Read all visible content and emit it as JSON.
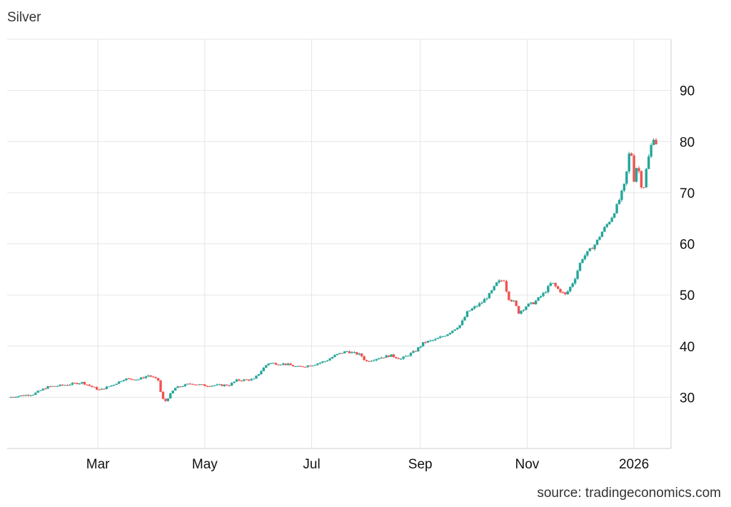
{
  "chart_data": {
    "type": "candlestick",
    "title": "Silver",
    "source": "source: tradingeconomics.com",
    "ylim": [
      20,
      100
    ],
    "yticks": [
      30,
      40,
      50,
      60,
      70,
      80,
      90
    ],
    "xlim": [
      0,
      370
    ],
    "xticks": [
      {
        "label": "Mar",
        "x": 51
      },
      {
        "label": "May",
        "x": 112
      },
      {
        "label": "Jul",
        "x": 173
      },
      {
        "label": "Sep",
        "x": 235
      },
      {
        "label": "Nov",
        "x": 296
      },
      {
        "label": "2026",
        "x": 357
      }
    ],
    "grid": true,
    "colors": {
      "up": "#26a69a",
      "down": "#ef5350",
      "grid": "#e6e6e6",
      "text": "#111111"
    },
    "anchors": [
      [
        0,
        30.0
      ],
      [
        9,
        30.4
      ],
      [
        14,
        30.6
      ],
      [
        22,
        32.0
      ],
      [
        32,
        32.4
      ],
      [
        42,
        32.9
      ],
      [
        52,
        31.4
      ],
      [
        60,
        32.5
      ],
      [
        66,
        33.6
      ],
      [
        74,
        33.5
      ],
      [
        80,
        34.3
      ],
      [
        86,
        33.2
      ],
      [
        87,
        30.5
      ],
      [
        89,
        29.0
      ],
      [
        95,
        31.8
      ],
      [
        104,
        32.7
      ],
      [
        112,
        32.3
      ],
      [
        126,
        32.4
      ],
      [
        130,
        33.3
      ],
      [
        140,
        33.5
      ],
      [
        145,
        35.5
      ],
      [
        148,
        36.7
      ],
      [
        158,
        36.5
      ],
      [
        165,
        35.9
      ],
      [
        173,
        36.3
      ],
      [
        181,
        37.1
      ],
      [
        187,
        38.3
      ],
      [
        193,
        39.0
      ],
      [
        201,
        38.3
      ],
      [
        204,
        37.0
      ],
      [
        210,
        37.6
      ],
      [
        218,
        38.2
      ],
      [
        224,
        37.5
      ],
      [
        232,
        39.0
      ],
      [
        237,
        40.7
      ],
      [
        244,
        41.3
      ],
      [
        250,
        42.3
      ],
      [
        258,
        44.2
      ],
      [
        262,
        46.7
      ],
      [
        270,
        48.5
      ],
      [
        275,
        50.3
      ],
      [
        279,
        52.5
      ],
      [
        283,
        53.0
      ],
      [
        285,
        49.5
      ],
      [
        289,
        48.5
      ],
      [
        291,
        46.5
      ],
      [
        296,
        48.0
      ],
      [
        300,
        48.5
      ],
      [
        306,
        50.5
      ],
      [
        310,
        52.5
      ],
      [
        314,
        51.0
      ],
      [
        318,
        50.0
      ],
      [
        323,
        53.0
      ],
      [
        327,
        57.0
      ],
      [
        331,
        58.5
      ],
      [
        335,
        60.0
      ],
      [
        339,
        62.5
      ],
      [
        344,
        65.0
      ],
      [
        348,
        68.0
      ],
      [
        352,
        72.0
      ],
      [
        354,
        77.0
      ],
      [
        355,
        79.5
      ],
      [
        357,
        72.5
      ],
      [
        359,
        76.0
      ],
      [
        361,
        71.5
      ],
      [
        363,
        71.2
      ],
      [
        364,
        74.5
      ],
      [
        366,
        78.0
      ],
      [
        368,
        81.0
      ],
      [
        369,
        80.0
      ],
      [
        370,
        79.5
      ]
    ]
  }
}
